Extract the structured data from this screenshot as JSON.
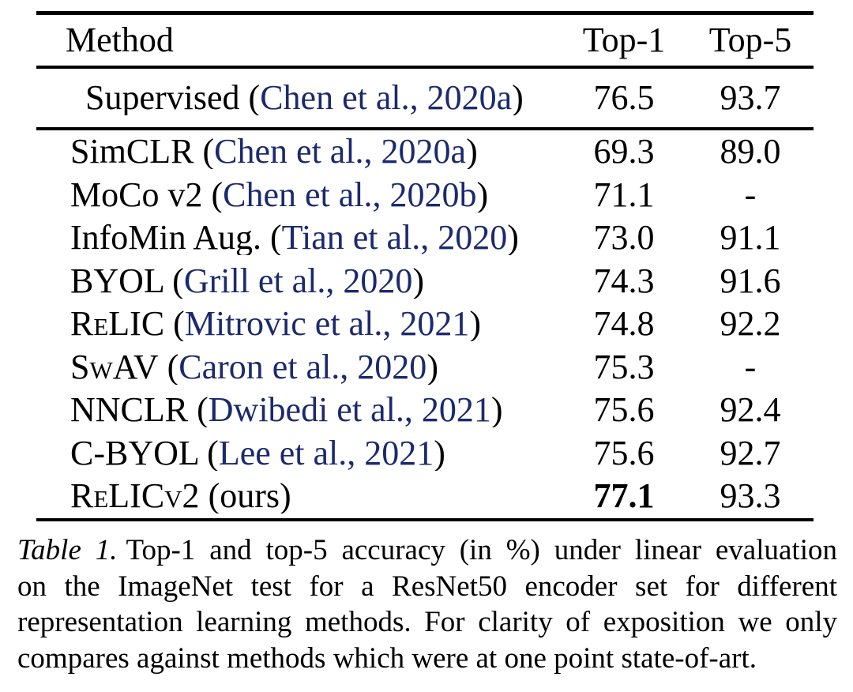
{
  "colors": {
    "citation": "#1b2a6e",
    "text": "#000000",
    "rule": "#000000",
    "background": "#ffffff"
  },
  "table": {
    "columns": [
      "Method",
      "Top-1",
      "Top-5"
    ],
    "supervised": {
      "name": "Supervised",
      "smallcaps": false,
      "citation": "Chen et al., 2020a",
      "top1": "76.5",
      "top5": "93.7",
      "top1_bold": false
    },
    "rows": [
      {
        "name": "SimCLR",
        "smallcaps": false,
        "citation": "Chen et al., 2020a",
        "top1": "69.3",
        "top5": "89.0",
        "top1_bold": false
      },
      {
        "name": "MoCo v2",
        "smallcaps": false,
        "citation": "Chen et al., 2020b",
        "top1": "71.1",
        "top5": "-",
        "top1_bold": false
      },
      {
        "name": "InfoMin Aug.",
        "smallcaps": false,
        "citation": "Tian et al., 2020",
        "top1": "73.0",
        "top5": "91.1",
        "top1_bold": false
      },
      {
        "name": "BYOL",
        "smallcaps": false,
        "citation": "Grill et al., 2020",
        "top1": "74.3",
        "top5": "91.6",
        "top1_bold": false
      },
      {
        "name": "ReLIC",
        "smallcaps": true,
        "citation": "Mitrovic et al., 2021",
        "top1": "74.8",
        "top5": "92.2",
        "top1_bold": false
      },
      {
        "name": "SwAV",
        "smallcaps": true,
        "citation": "Caron et al., 2020",
        "top1": "75.3",
        "top5": "-",
        "top1_bold": false
      },
      {
        "name": "NNCLR",
        "smallcaps": false,
        "citation": "Dwibedi et al., 2021",
        "top1": "75.6",
        "top5": "92.4",
        "top1_bold": false
      },
      {
        "name": "C-BYOL",
        "smallcaps": false,
        "citation": "Lee et al., 2021",
        "top1": "75.6",
        "top5": "92.7",
        "top1_bold": false
      },
      {
        "name": "ReLICv2",
        "smallcaps": true,
        "suffix": " (ours)",
        "citation": null,
        "top1": "77.1",
        "top5": "93.3",
        "top1_bold": true
      }
    ]
  },
  "caption": {
    "label": "Table 1.",
    "line1_rest": "Top-1 and top-5 accuracy (in %) under linear evaluation",
    "line2": "on the ImageNet test for a ResNet50 encoder set for different",
    "line3": "representation learning methods. For clarity of exposition we only",
    "line4": "compares against methods which were at one point state-of-art."
  }
}
